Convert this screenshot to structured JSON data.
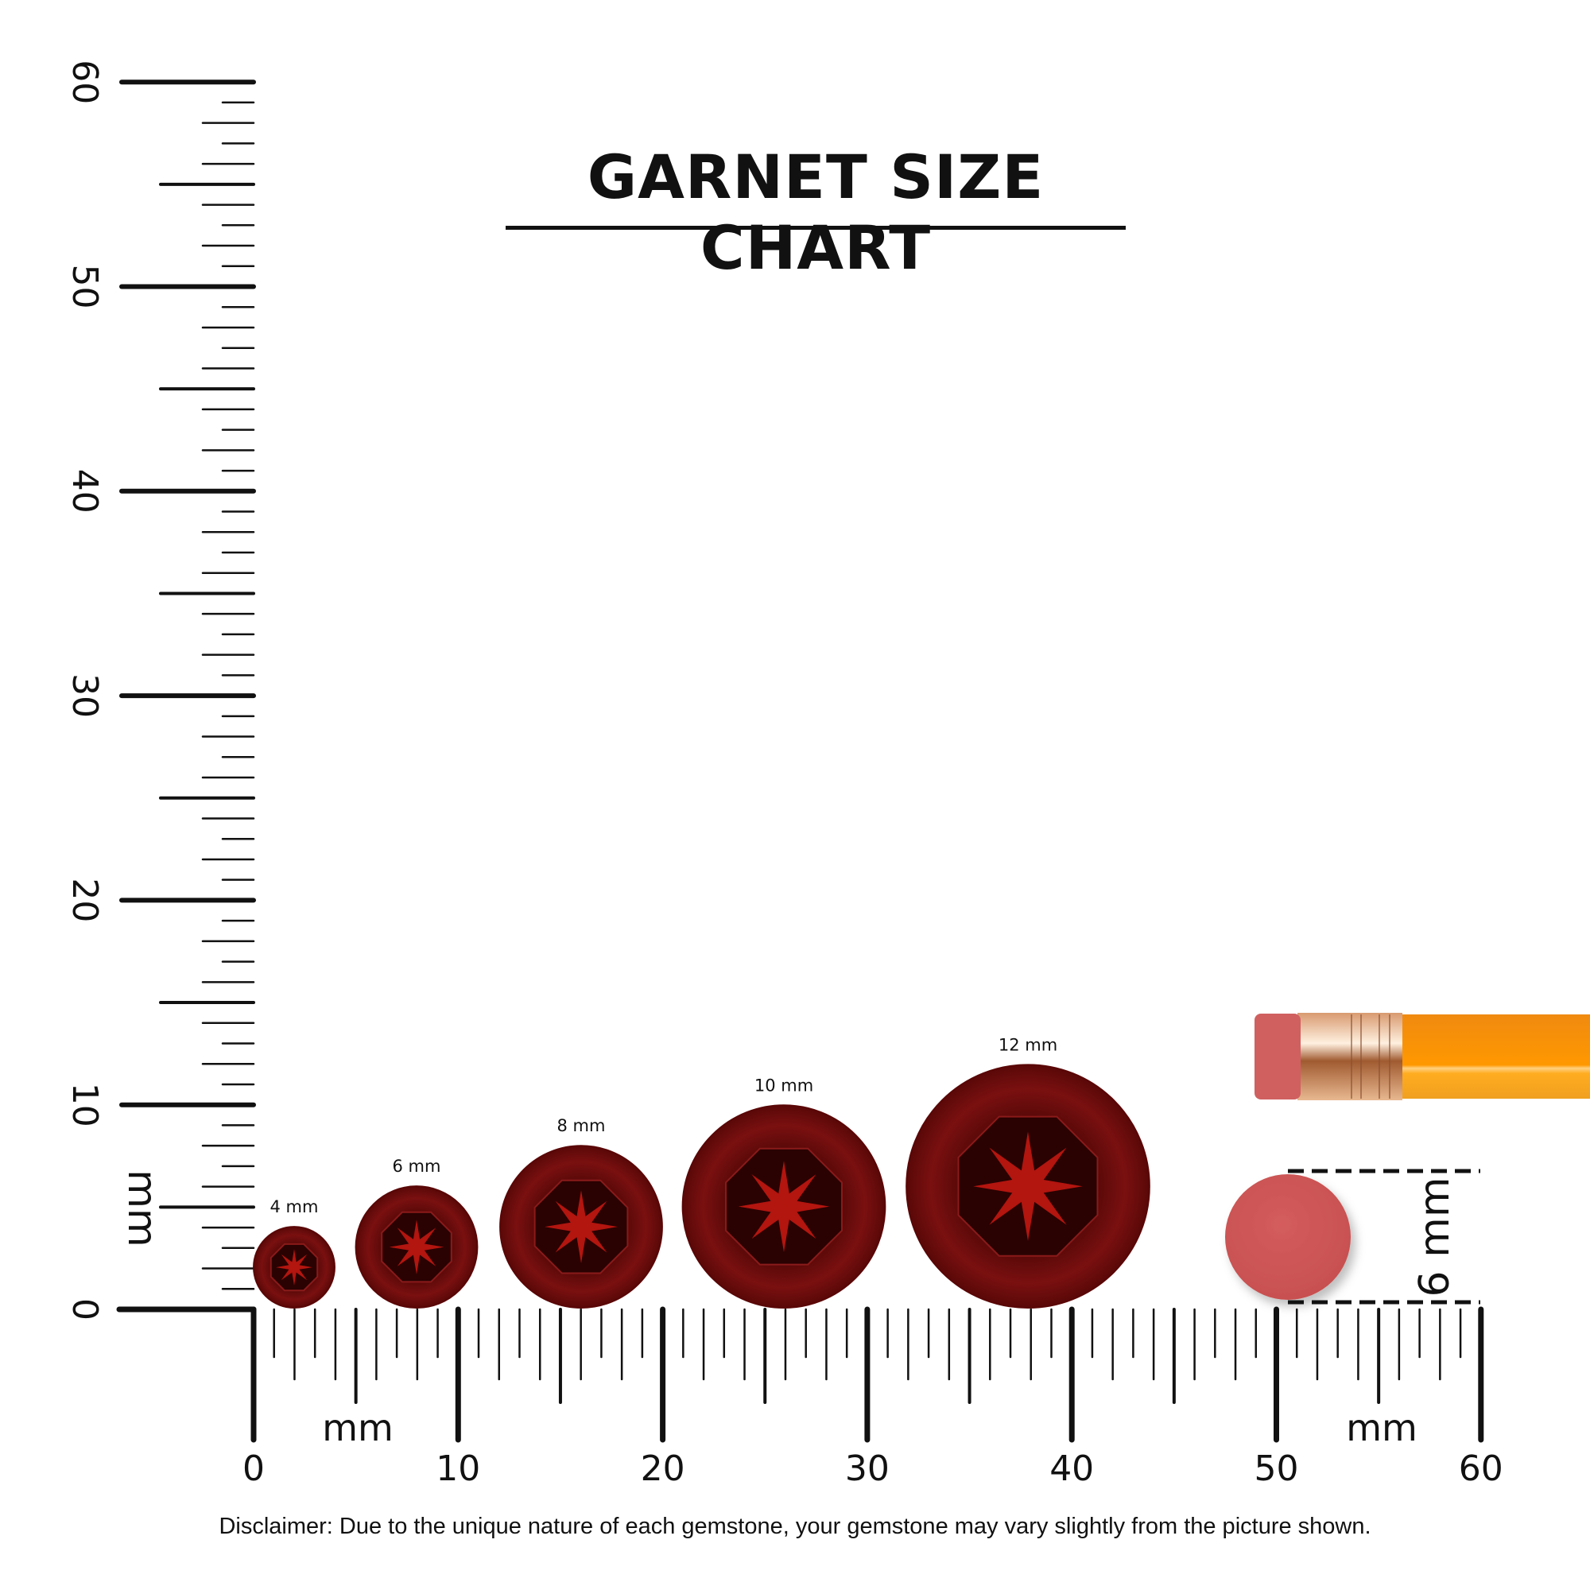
{
  "title": "GARNET SIZE CHART",
  "disclaimer": "Disclaimer: Due to the unique nature of each gemstone, your gemstone may vary slightly from the picture shown.",
  "ruler": {
    "unit_label": "mm",
    "vertical_ticks": [
      "0",
      "10",
      "20",
      "30",
      "40",
      "50",
      "60"
    ],
    "horizontal_ticks": [
      "0",
      "10",
      "20",
      "30",
      "40",
      "50",
      "60"
    ],
    "range_mm": [
      0,
      60
    ]
  },
  "gems": [
    {
      "label": "4 mm",
      "size_mm": 4
    },
    {
      "label": "6 mm",
      "size_mm": 6
    },
    {
      "label": "8 mm",
      "size_mm": 8
    },
    {
      "label": "10 mm",
      "size_mm": 10
    },
    {
      "label": "12 mm",
      "size_mm": 12
    }
  ],
  "reference": {
    "label": "6 mm",
    "size_mm": 6,
    "object": "pencil-eraser"
  },
  "colors": {
    "gem": "#7a0d0d",
    "gem_highlight": "#c01a14",
    "eraser": "#d05a5a",
    "pencil": "#ff9a10",
    "ferrule": "#e0a070"
  }
}
